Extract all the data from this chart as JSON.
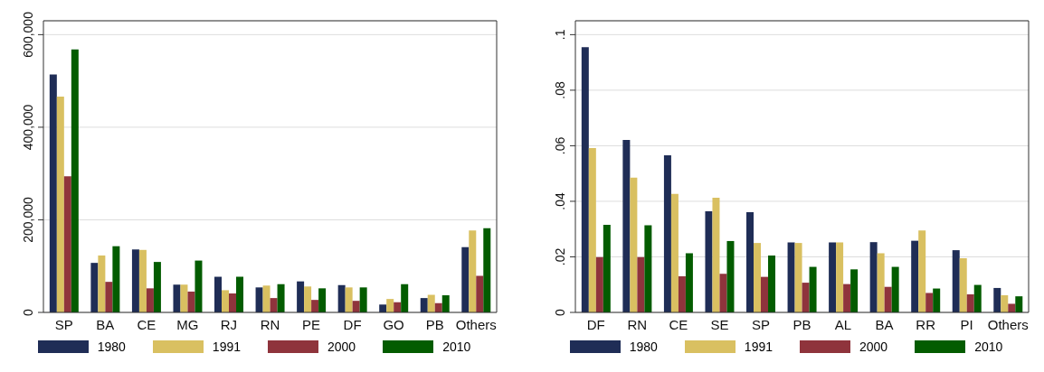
{
  "chart_data": [
    {
      "type": "bar",
      "categories": [
        "SP",
        "BA",
        "CE",
        "MG",
        "RJ",
        "RN",
        "PE",
        "DF",
        "GO",
        "PB",
        "Others"
      ],
      "series": [
        {
          "name": "1980",
          "color": "#1f2d56",
          "values": [
            514000,
            107000,
            136000,
            60000,
            77000,
            54000,
            67000,
            59000,
            17000,
            31000,
            141000
          ]
        },
        {
          "name": "1991",
          "color": "#d9c061",
          "values": [
            466000,
            123000,
            135000,
            60000,
            48000,
            58000,
            56000,
            54000,
            29000,
            38000,
            177000
          ]
        },
        {
          "name": "2000",
          "color": "#8f343c",
          "values": [
            294000,
            66000,
            52000,
            45000,
            41000,
            31000,
            27000,
            25000,
            22000,
            20000,
            79000
          ]
        },
        {
          "name": "2010",
          "color": "#035c00",
          "values": [
            568000,
            143000,
            109000,
            112000,
            77000,
            61000,
            52000,
            54000,
            61000,
            37000,
            182000
          ]
        }
      ],
      "ylim": [
        0,
        630000
      ],
      "yticks": [
        {
          "value": 0,
          "label": "0"
        },
        {
          "value": 200000,
          "label": "200,000"
        },
        {
          "value": 400000,
          "label": "400,000"
        },
        {
          "value": 600000,
          "label": "600,000"
        }
      ],
      "grid": "y",
      "legend": "bottom"
    },
    {
      "type": "bar",
      "categories": [
        "DF",
        "RN",
        "CE",
        "SE",
        "SP",
        "PB",
        "AL",
        "BA",
        "RR",
        "PI",
        "Others"
      ],
      "series": [
        {
          "name": "1980",
          "color": "#1f2d56",
          "values": [
            0.0955,
            0.0621,
            0.0566,
            0.0364,
            0.0361,
            0.0252,
            0.0252,
            0.0253,
            0.0258,
            0.0224,
            0.0088
          ]
        },
        {
          "name": "1991",
          "color": "#d9c061",
          "values": [
            0.0592,
            0.0485,
            0.0427,
            0.0413,
            0.025,
            0.025,
            0.0252,
            0.0213,
            0.0295,
            0.0195,
            0.0062
          ]
        },
        {
          "name": "2000",
          "color": "#8f343c",
          "values": [
            0.0199,
            0.0199,
            0.013,
            0.0139,
            0.0128,
            0.0107,
            0.0102,
            0.0092,
            0.007,
            0.0065,
            0.0031
          ]
        },
        {
          "name": "2010",
          "color": "#035c00",
          "values": [
            0.0315,
            0.0314,
            0.0213,
            0.0257,
            0.0205,
            0.0164,
            0.0155,
            0.0164,
            0.0086,
            0.0099,
            0.0058
          ]
        }
      ],
      "ylim": [
        0,
        0.105
      ],
      "yticks": [
        {
          "value": 0,
          "label": "0"
        },
        {
          "value": 0.02,
          "label": ".02"
        },
        {
          "value": 0.04,
          "label": ".04"
        },
        {
          "value": 0.06,
          "label": ".06"
        },
        {
          "value": 0.08,
          "label": ".08"
        },
        {
          "value": 0.1,
          "label": ".1"
        }
      ],
      "grid": "y",
      "legend": "bottom"
    }
  ]
}
